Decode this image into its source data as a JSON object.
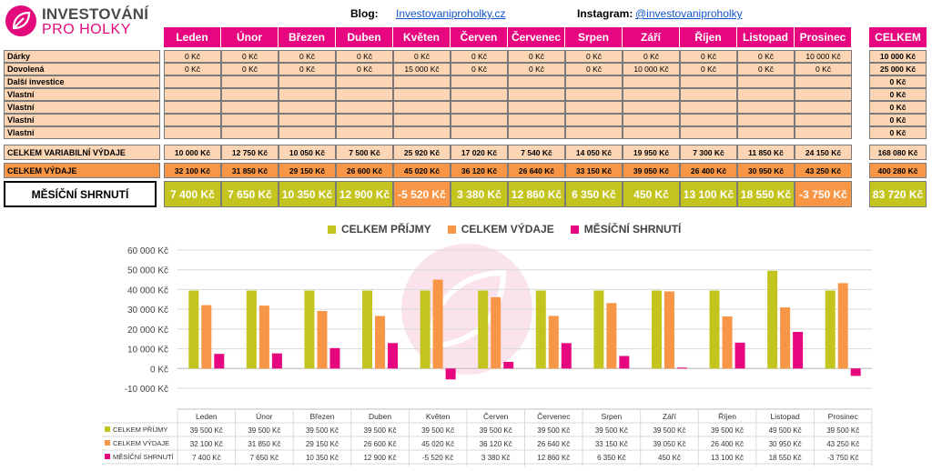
{
  "logo": {
    "line1": "INVESTOVÁNÍ",
    "line2": "PRO HOLKY"
  },
  "header": {
    "blog_label": "Blog:",
    "blog_link": "Investovaniproholky.cz",
    "instagram_label": "Instagram:",
    "instagram_link": "@investovaniproholky"
  },
  "months": [
    "Leden",
    "Únor",
    "Březen",
    "Duben",
    "Květen",
    "Červen",
    "Červenec",
    "Srpen",
    "Září",
    "Říjen",
    "Listopad",
    "Prosinec"
  ],
  "total_header": "CELKEM",
  "rows": [
    {
      "label": "Dárky",
      "values": [
        "0 Kč",
        "0 Kč",
        "0 Kč",
        "0 Kč",
        "0 Kč",
        "0 Kč",
        "0 Kč",
        "0 Kč",
        "0 Kč",
        "0 Kč",
        "0 Kč",
        "10 000 Kč"
      ],
      "total": "10 000 Kč"
    },
    {
      "label": "Dovolená",
      "values": [
        "0 Kč",
        "0 Kč",
        "0 Kč",
        "0 Kč",
        "15 000 Kč",
        "0 Kč",
        "0 Kč",
        "0 Kč",
        "10 000 Kč",
        "0 Kč",
        "0 Kč",
        "0 Kč"
      ],
      "total": "25 000 Kč"
    },
    {
      "label": "Další investice",
      "values": [
        "",
        "",
        "",
        "",
        "",
        "",
        "",
        "",
        "",
        "",
        "",
        ""
      ],
      "total": "0 Kč"
    },
    {
      "label": "Vlastní",
      "values": [
        "",
        "",
        "",
        "",
        "",
        "",
        "",
        "",
        "",
        "",
        "",
        ""
      ],
      "total": "0 Kč"
    },
    {
      "label": "Vlastní",
      "values": [
        "",
        "",
        "",
        "",
        "",
        "",
        "",
        "",
        "",
        "",
        "",
        ""
      ],
      "total": "0 Kč"
    },
    {
      "label": "Vlastní",
      "values": [
        "",
        "",
        "",
        "",
        "",
        "",
        "",
        "",
        "",
        "",
        "",
        ""
      ],
      "total": "0 Kč"
    },
    {
      "label": "Vlastní",
      "values": [
        "",
        "",
        "",
        "",
        "",
        "",
        "",
        "",
        "",
        "",
        "",
        ""
      ],
      "total": "0 Kč"
    }
  ],
  "variable_row": {
    "label": "CELKEM VARIABILNÍ VÝDAJE",
    "values": [
      "10 000 Kč",
      "12 750 Kč",
      "10 050 Kč",
      "7 500 Kč",
      "25 920 Kč",
      "17 020 Kč",
      "7 540 Kč",
      "14 050 Kč",
      "19 950 Kč",
      "7 300 Kč",
      "11 850 Kč",
      "24 150 Kč"
    ],
    "total": "168 080 Kč"
  },
  "expenses_row": {
    "label": "CELKEM VÝDAJE",
    "values": [
      "32 100 Kč",
      "31 850 Kč",
      "29 150 Kč",
      "26 600 Kč",
      "45 020 Kč",
      "36 120 Kč",
      "26 640 Kč",
      "33 150 Kč",
      "39 050 Kč",
      "26 400 Kč",
      "30 950 Kč",
      "43 250 Kč"
    ],
    "total": "400 280 Kč"
  },
  "summary_row": {
    "label": "MĚSÍČNÍ SHRNUTÍ",
    "values": [
      "7 400 Kč",
      "7 650 Kč",
      "10 350 Kč",
      "12 900 Kč",
      "-5 520 Kč",
      "3 380 Kč",
      "12 860 Kč",
      "6 350 Kč",
      "450 Kč",
      "13 100 Kč",
      "18 550 Kč",
      "-3 750 Kč"
    ],
    "total": "83 720 Kč"
  },
  "colors": {
    "pink": "#e6067f",
    "green": "#c4c41f",
    "orange": "#f79646",
    "peach": "#fcd5b4"
  },
  "chart_data": {
    "type": "bar",
    "categories": [
      "Leden",
      "Únor",
      "Březen",
      "Duben",
      "Květen",
      "Červen",
      "Červenec",
      "Srpen",
      "Září",
      "Říjen",
      "Listopad",
      "Prosinec"
    ],
    "series": [
      {
        "name": "CELKEM PŘÍJMY",
        "color": "#c4c41f",
        "values": [
          39500,
          39500,
          39500,
          39500,
          39500,
          39500,
          39500,
          39500,
          39500,
          39500,
          49500,
          39500
        ],
        "labels": [
          "39 500 Kč",
          "39 500 Kč",
          "39 500 Kč",
          "39 500 Kč",
          "39 500 Kč",
          "39 500 Kč",
          "39 500 Kč",
          "39 500 Kč",
          "39 500 Kč",
          "39 500 Kč",
          "49 500 Kč",
          "39 500 Kč"
        ]
      },
      {
        "name": "CELKEM VÝDAJE",
        "color": "#f79646",
        "values": [
          32100,
          31850,
          29150,
          26600,
          45020,
          36120,
          26640,
          33150,
          39050,
          26400,
          30950,
          43250
        ],
        "labels": [
          "32 100 Kč",
          "31 850 Kč",
          "29 150 Kč",
          "26 600 Kč",
          "45 020 Kč",
          "36 120 Kč",
          "26 640 Kč",
          "33 150 Kč",
          "39 050 Kč",
          "26 400 Kč",
          "30 950 Kč",
          "43 250 Kč"
        ]
      },
      {
        "name": "MĚSÍČNÍ SHRNUTÍ",
        "color": "#e6067f",
        "values": [
          7400,
          7650,
          10350,
          12900,
          -5520,
          3380,
          12860,
          6350,
          450,
          13100,
          18550,
          -3750
        ],
        "labels": [
          "7 400 Kč",
          "7 650 Kč",
          "10 350 Kč",
          "12 900 Kč",
          "-5 520 Kč",
          "3 380 Kč",
          "12 860 Kč",
          "6 350 Kč",
          "450 Kč",
          "13 100 Kč",
          "18 550 Kč",
          "-3 750 Kč"
        ]
      }
    ],
    "y_ticks": [
      "60 000 Kč",
      "50 000 Kč",
      "40 000 Kč",
      "30 000 Kč",
      "20 000 Kč",
      "10 000 Kč",
      "0 Kč",
      "-10 000 Kč"
    ],
    "ylim": [
      -10000,
      60000
    ],
    "grid": true,
    "legend": "top"
  }
}
